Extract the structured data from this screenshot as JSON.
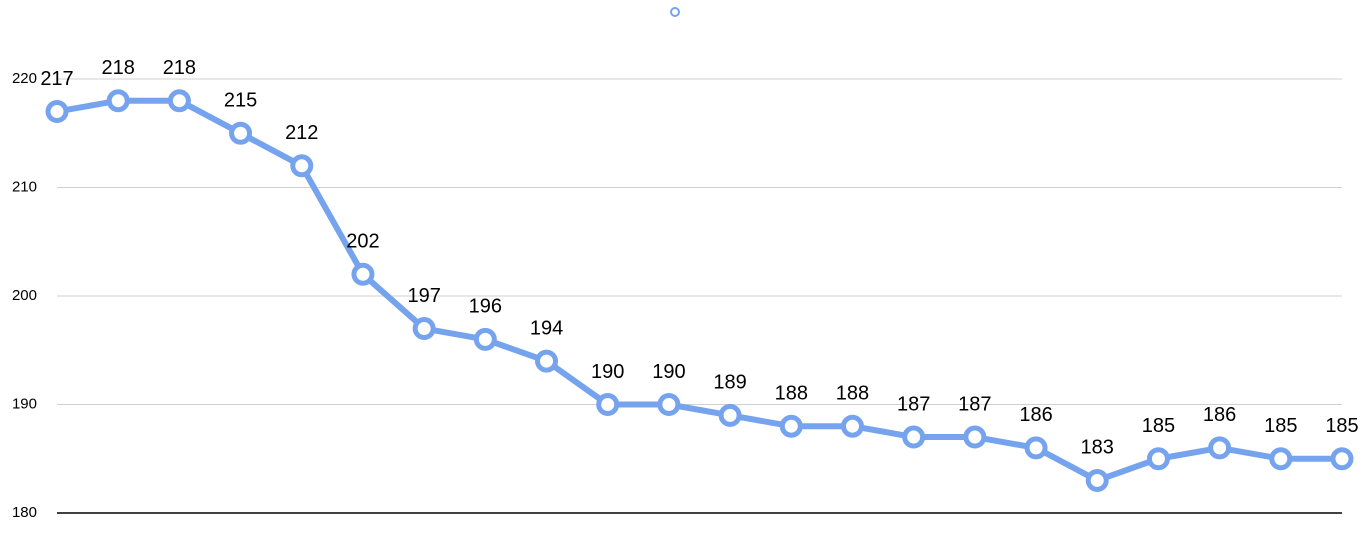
{
  "chart_data": {
    "type": "line",
    "categories": [
      null,
      null,
      null,
      null,
      null,
      null,
      null,
      null,
      null,
      null,
      null,
      null,
      null,
      null,
      null,
      null,
      null,
      null,
      null,
      null,
      null,
      null
    ],
    "series": [
      {
        "color": "#76a3ee",
        "values": [
          217,
          218,
          218,
          215,
          212,
          202,
          197,
          196,
          194,
          190,
          190,
          189,
          188,
          188,
          187,
          187,
          186,
          183,
          185,
          186,
          185,
          185
        ]
      }
    ],
    "ylim": [
      180,
      220
    ],
    "yticks": [
      180,
      190,
      200,
      210,
      220
    ],
    "grid": true,
    "legend": "top",
    "data_labels": true
  }
}
